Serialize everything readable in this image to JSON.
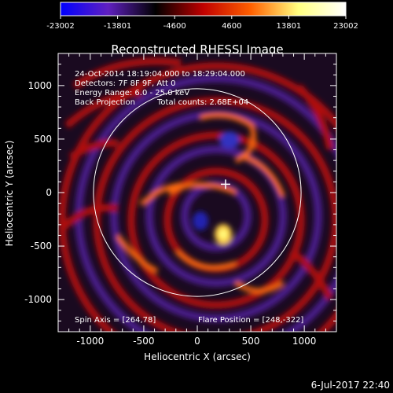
{
  "figure": {
    "title": "Reconstructed RHESSI Image",
    "xlabel": "Heliocentric X (arcsec)",
    "ylabel": "Heliocentric Y (arcsec)",
    "timestamp": "6-Jul-2017 22:40"
  },
  "colorbar": {
    "ticks": [
      "-23002",
      "-13801",
      "-4600",
      "4600",
      "13801",
      "23002"
    ],
    "colors": [
      "#0000ff",
      "#6020c0",
      "#000000",
      "#c00000",
      "#ff6000",
      "#ffff80",
      "#ffffff"
    ]
  },
  "annotations": {
    "time_range": "24-Oct-2014 18:19:04.000 to 18:29:04.000",
    "detectors": "Detectors: 7F 8F 9F, Att 0",
    "energy": "Energy Range: 6.0 - 25.0 keV",
    "method": "Back Projection",
    "total_counts": "Total counts: 2.68E+04",
    "spin_axis": "Spin Axis = [264,78]",
    "flare_position": "Flare Position = [248,-322]"
  },
  "axes": {
    "xlim": [
      -1300,
      1300
    ],
    "ylim": [
      -1300,
      1300
    ],
    "xticks": [
      "-1000",
      "-500",
      "0",
      "500",
      "1000"
    ],
    "yticks": [
      "1000",
      "500",
      "0",
      "-500",
      "-1000"
    ],
    "xtick_values": [
      -1000,
      -500,
      0,
      500,
      1000
    ],
    "ytick_values": [
      1000,
      500,
      0,
      -500,
      -1000
    ]
  },
  "solar_limb_radius_arcsec": 970,
  "spin_axis_marker": [
    264,
    78
  ],
  "flare_position": [
    248,
    -322
  ]
}
